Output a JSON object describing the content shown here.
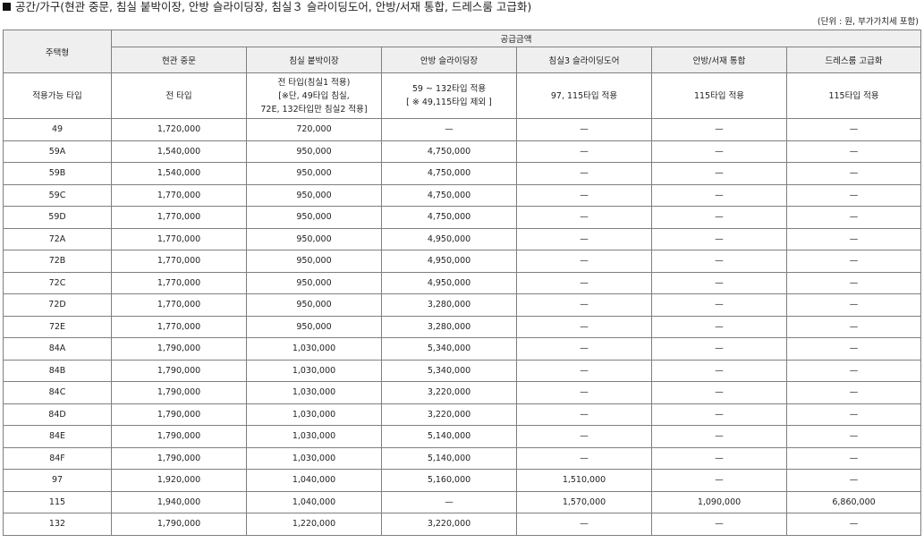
{
  "title": "공간/가구(현관 중문, 침실 붙박이장, 안방 슬라이딩장, 침실３ 슬라이딩도어, 안방/서재 통합, 드레스룸 고급화)",
  "unit_note": "(단위 : 원, 부가가치세 포함)",
  "header": {
    "row_label": "주택형",
    "group_label": "공급금액",
    "columns": [
      "현관 중문",
      "침실 붙박이장",
      "안방 슬라이딩장",
      "침실3 슬라이딩도어",
      "안방/서재 통합",
      "드레스룸 고급화"
    ]
  },
  "applicable": {
    "label": "적용가능 타입",
    "cells": [
      [
        "전 타입"
      ],
      [
        "전 타입(침실1 적용)",
        "[※단, 49타입 침실,",
        "72E, 132타입만 침실2 적용]"
      ],
      [
        "59 ~ 132타입 적용",
        "[ ※ 49,115타입 제외 ]"
      ],
      [
        "97, 115타입 적용"
      ],
      [
        "115타입 적용"
      ],
      [
        "115타입 적용"
      ]
    ]
  },
  "rows": [
    {
      "type": "49",
      "values": [
        "1,720,000",
        "720,000",
        "—",
        "—",
        "—",
        "—"
      ]
    },
    {
      "type": "59A",
      "values": [
        "1,540,000",
        "950,000",
        "4,750,000",
        "—",
        "—",
        "—"
      ]
    },
    {
      "type": "59B",
      "values": [
        "1,540,000",
        "950,000",
        "4,750,000",
        "—",
        "—",
        "—"
      ]
    },
    {
      "type": "59C",
      "values": [
        "1,770,000",
        "950,000",
        "4,750,000",
        "—",
        "—",
        "—"
      ]
    },
    {
      "type": "59D",
      "values": [
        "1,770,000",
        "950,000",
        "4,750,000",
        "—",
        "—",
        "—"
      ]
    },
    {
      "type": "72A",
      "values": [
        "1,770,000",
        "950,000",
        "4,950,000",
        "—",
        "—",
        "—"
      ]
    },
    {
      "type": "72B",
      "values": [
        "1,770,000",
        "950,000",
        "4,950,000",
        "—",
        "—",
        "—"
      ]
    },
    {
      "type": "72C",
      "values": [
        "1,770,000",
        "950,000",
        "4,950,000",
        "—",
        "—",
        "—"
      ]
    },
    {
      "type": "72D",
      "values": [
        "1,770,000",
        "950,000",
        "3,280,000",
        "—",
        "—",
        "—"
      ]
    },
    {
      "type": "72E",
      "values": [
        "1,770,000",
        "950,000",
        "3,280,000",
        "—",
        "—",
        "—"
      ]
    },
    {
      "type": "84A",
      "values": [
        "1,790,000",
        "1,030,000",
        "5,340,000",
        "—",
        "—",
        "—"
      ]
    },
    {
      "type": "84B",
      "values": [
        "1,790,000",
        "1,030,000",
        "5,340,000",
        "—",
        "—",
        "—"
      ]
    },
    {
      "type": "84C",
      "values": [
        "1,790,000",
        "1,030,000",
        "3,220,000",
        "—",
        "—",
        "—"
      ]
    },
    {
      "type": "84D",
      "values": [
        "1,790,000",
        "1,030,000",
        "3,220,000",
        "—",
        "—",
        "—"
      ]
    },
    {
      "type": "84E",
      "values": [
        "1,790,000",
        "1,030,000",
        "5,140,000",
        "—",
        "—",
        "—"
      ]
    },
    {
      "type": "84F",
      "values": [
        "1,790,000",
        "1,030,000",
        "5,140,000",
        "—",
        "—",
        "—"
      ]
    },
    {
      "type": "97",
      "values": [
        "1,920,000",
        "1,040,000",
        "5,160,000",
        "1,510,000",
        "—",
        "—"
      ]
    },
    {
      "type": "115",
      "values": [
        "1,940,000",
        "1,040,000",
        "—",
        "1,570,000",
        "1,090,000",
        "6,860,000"
      ]
    },
    {
      "type": "132",
      "values": [
        "1,790,000",
        "1,220,000",
        "3,220,000",
        "—",
        "—",
        "—"
      ]
    }
  ]
}
